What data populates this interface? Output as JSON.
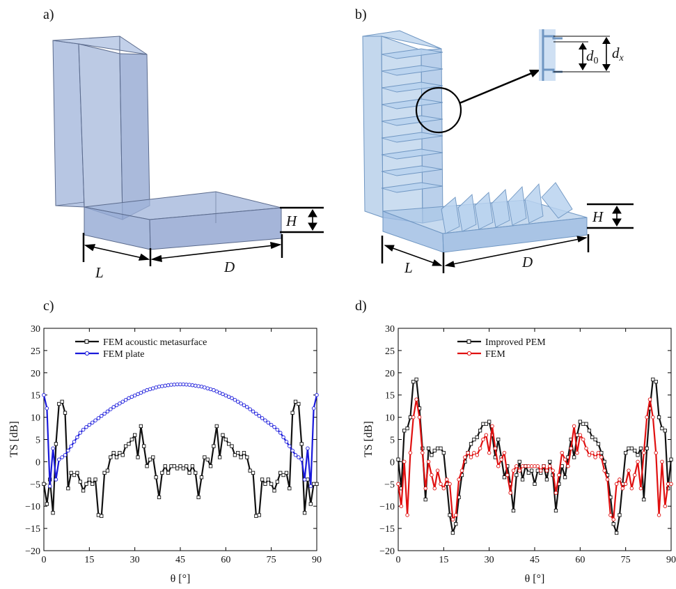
{
  "panels": {
    "a": {
      "label": "a)",
      "dims": {
        "L": "L",
        "D": "D",
        "H": "H"
      }
    },
    "b": {
      "label": "b)",
      "dims": {
        "L": "L",
        "D": "D",
        "H": "H",
        "d0": "d",
        "d0_sub": "0",
        "dx": "d",
        "dx_sub": "x"
      }
    }
  },
  "colors": {
    "solid_face": "#9fb3d9",
    "solid_edge": "#5a6a8c",
    "meta_face": "#a9c6e6",
    "meta_edge": "#6f96c2",
    "black_series": "#111111",
    "blue_series": "#1a1adb",
    "red_series": "#e01010"
  },
  "chart_data": [
    {
      "panel_label": "c)",
      "type": "line",
      "xlabel": "θ [°]",
      "ylabel": "TS [dB]",
      "xlim": [
        0,
        90
      ],
      "ylim": [
        -20,
        30
      ],
      "xticks": [
        0,
        15,
        30,
        45,
        60,
        75,
        90
      ],
      "yticks": [
        -20,
        -15,
        -10,
        -5,
        0,
        5,
        10,
        15,
        20,
        25,
        30
      ],
      "grid": false,
      "legend": "top-center",
      "series": [
        {
          "name": "FEM acoustic metasurface",
          "color": "#111111",
          "marker": "square",
          "x": [
            0,
            1,
            2,
            3,
            4,
            5,
            6,
            7,
            8,
            9,
            10,
            11,
            12,
            13,
            14,
            15,
            16,
            17,
            18,
            19,
            20,
            21,
            22,
            23,
            24,
            25,
            26,
            27,
            28,
            29,
            30,
            31,
            32,
            33,
            34,
            35,
            36,
            37,
            38,
            39,
            40,
            41,
            42,
            43,
            44,
            45,
            46,
            47,
            48,
            49,
            50,
            51,
            52,
            53,
            54,
            55,
            56,
            57,
            58,
            59,
            60,
            61,
            62,
            63,
            64,
            65,
            66,
            67,
            68,
            69,
            70,
            71,
            72,
            73,
            74,
            75,
            76,
            77,
            78,
            79,
            80,
            81,
            82,
            83,
            84,
            85,
            86,
            87,
            88,
            89,
            90
          ],
          "y": [
            -5,
            -9.5,
            -4,
            -11.5,
            4,
            13,
            13.5,
            11,
            -6,
            -2.5,
            -3,
            -2.5,
            -4.5,
            -6.5,
            -5,
            -4,
            -5,
            -4,
            -12,
            -12.2,
            -2.5,
            -2,
            1,
            2,
            1,
            2,
            1.5,
            3.5,
            4,
            5,
            6,
            1,
            8,
            3.5,
            -1,
            0.5,
            1,
            -3.5,
            -8,
            -2.5,
            -1,
            -2.5,
            -1,
            -1,
            -1.5,
            -1,
            -1.5,
            -1,
            -2.5,
            -1,
            -2.5,
            -8,
            -3.5,
            1,
            0.5,
            -1,
            3.5,
            8,
            1,
            6,
            5,
            4,
            3.5,
            1.5,
            2,
            1,
            2,
            1,
            -2,
            -2.5,
            -12.2,
            -12,
            -4,
            -5,
            -4,
            -5,
            -6.5,
            -4.5,
            -2.5,
            -3,
            -2.5,
            -6,
            11,
            13.5,
            13,
            4,
            -11.5,
            -4,
            -9.5,
            -5,
            -5
          ]
        },
        {
          "name": "FEM plate",
          "color": "#1a1adb",
          "marker": "circle",
          "x": [
            0,
            1,
            2,
            3,
            4,
            5,
            6,
            7,
            8,
            9,
            10,
            11,
            12,
            13,
            14,
            15,
            16,
            17,
            18,
            19,
            20,
            21,
            22,
            23,
            24,
            25,
            26,
            27,
            28,
            29,
            30,
            31,
            32,
            33,
            34,
            35,
            36,
            37,
            38,
            39,
            40,
            41,
            42,
            43,
            44,
            45,
            46,
            47,
            48,
            49,
            50,
            51,
            52,
            53,
            54,
            55,
            56,
            57,
            58,
            59,
            60,
            61,
            62,
            63,
            64,
            65,
            66,
            67,
            68,
            69,
            70,
            71,
            72,
            73,
            74,
            75,
            76,
            77,
            78,
            79,
            80,
            81,
            82,
            83,
            84,
            85,
            86,
            87,
            88,
            89,
            90
          ],
          "y": [
            15,
            12,
            -5.5,
            3,
            -4,
            0.5,
            1,
            1.5,
            2.5,
            3.5,
            4.5,
            5.5,
            6.5,
            7.2,
            7.8,
            8.3,
            8.8,
            9.3,
            9.8,
            10.3,
            10.8,
            11.3,
            11.8,
            12.3,
            12.7,
            13.1,
            13.5,
            13.9,
            14.3,
            14.6,
            14.9,
            15.2,
            15.5,
            15.8,
            16.1,
            16.3,
            16.5,
            16.7,
            16.9,
            17.0,
            17.1,
            17.2,
            17.3,
            17.35,
            17.4,
            17.4,
            17.4,
            17.35,
            17.3,
            17.2,
            17.1,
            17.0,
            16.9,
            16.7,
            16.5,
            16.3,
            16.1,
            15.8,
            15.5,
            15.2,
            14.9,
            14.6,
            14.3,
            13.9,
            13.5,
            13.1,
            12.7,
            12.3,
            11.8,
            11.3,
            10.8,
            10.3,
            9.8,
            9.3,
            8.8,
            8.3,
            7.8,
            7.2,
            6.5,
            5.5,
            4.5,
            3.5,
            2.5,
            1.5,
            1,
            0.5,
            -4,
            3,
            -5.5,
            12,
            15
          ]
        }
      ]
    },
    {
      "panel_label": "d)",
      "type": "line",
      "xlabel": "θ [°]",
      "ylabel": "TS [dB]",
      "xlim": [
        0,
        90
      ],
      "ylim": [
        -20,
        30
      ],
      "xticks": [
        0,
        15,
        30,
        45,
        60,
        75,
        90
      ],
      "yticks": [
        -20,
        -15,
        -10,
        -5,
        0,
        5,
        10,
        15,
        20,
        25,
        30
      ],
      "grid": false,
      "legend": "top-center",
      "series": [
        {
          "name": "Improved PEM",
          "color": "#111111",
          "marker": "square",
          "x": [
            0,
            1,
            2,
            3,
            4,
            5,
            6,
            7,
            8,
            9,
            10,
            11,
            12,
            13,
            14,
            15,
            16,
            17,
            18,
            19,
            20,
            21,
            22,
            23,
            24,
            25,
            26,
            27,
            28,
            29,
            30,
            31,
            32,
            33,
            34,
            35,
            36,
            37,
            38,
            39,
            40,
            41,
            42,
            43,
            44,
            45,
            46,
            47,
            48,
            49,
            50,
            51,
            52,
            53,
            54,
            55,
            56,
            57,
            58,
            59,
            60,
            61,
            62,
            63,
            64,
            65,
            66,
            67,
            68,
            69,
            70,
            71,
            72,
            73,
            74,
            75,
            76,
            77,
            78,
            79,
            80,
            81,
            82,
            83,
            84,
            85,
            86,
            87,
            88,
            89,
            90
          ],
          "y": [
            0.5,
            -6,
            7,
            7.5,
            10,
            18,
            18.5,
            12,
            3,
            -8.5,
            3,
            1.5,
            2.5,
            3,
            3,
            2,
            -5,
            -12,
            -16,
            -14,
            -8,
            -3,
            0,
            2,
            4,
            5,
            5.5,
            7,
            8.5,
            8.5,
            9,
            6,
            1,
            5,
            1,
            -3.5,
            -1,
            -5,
            -11,
            -3,
            0,
            -4,
            -1,
            -2.5,
            -2,
            -5,
            -2,
            -2.5,
            -1,
            -4,
            0,
            -3,
            -11,
            -5,
            -1,
            -3.5,
            1,
            5,
            1,
            6,
            9,
            8.5,
            8.5,
            7,
            5.5,
            5,
            4,
            2,
            0,
            -3,
            -8,
            -14,
            -16,
            -12,
            -5,
            2,
            3,
            3,
            2.5,
            1.5,
            3,
            -8.5,
            3,
            12,
            18.5,
            18,
            10,
            7.5,
            7,
            -6,
            0.5
          ]
        },
        {
          "name": "FEM",
          "color": "#e01010",
          "marker": "circle",
          "x": [
            0,
            1,
            2,
            3,
            4,
            5,
            6,
            7,
            8,
            9,
            10,
            11,
            12,
            13,
            14,
            15,
            16,
            17,
            18,
            19,
            20,
            21,
            22,
            23,
            24,
            25,
            26,
            27,
            28,
            29,
            30,
            31,
            32,
            33,
            34,
            35,
            36,
            37,
            38,
            39,
            40,
            41,
            42,
            43,
            44,
            45,
            46,
            47,
            48,
            49,
            50,
            51,
            52,
            53,
            54,
            55,
            56,
            57,
            58,
            59,
            60,
            61,
            62,
            63,
            64,
            65,
            66,
            67,
            68,
            69,
            70,
            71,
            72,
            73,
            74,
            75,
            76,
            77,
            78,
            79,
            80,
            81,
            82,
            83,
            84,
            85,
            86,
            87,
            88,
            89,
            90
          ],
          "y": [
            -5,
            -10,
            0,
            -12,
            2,
            10,
            14,
            10,
            2,
            -6,
            0,
            -3,
            -6,
            -2,
            -5,
            -6,
            -4,
            -5,
            -13,
            -12,
            -4,
            -2,
            1,
            2,
            1,
            2,
            1.5,
            3,
            5,
            6,
            2,
            8,
            3,
            -1,
            0.5,
            2,
            -3,
            -7,
            -2,
            -1,
            -2,
            -1,
            -1,
            -1,
            -1,
            -1,
            -1,
            -2,
            -1,
            -2,
            -1,
            -2,
            -7,
            -3,
            2,
            0.5,
            -1,
            3,
            8,
            2,
            6,
            5,
            3,
            1.5,
            2,
            1,
            2,
            1,
            -2,
            -4,
            -12,
            -13,
            -5,
            -4,
            -6,
            -5,
            -2,
            -6,
            -3,
            0,
            -6,
            2,
            10,
            14,
            10,
            2,
            -12,
            0,
            -10,
            -5,
            -5
          ]
        }
      ]
    }
  ]
}
